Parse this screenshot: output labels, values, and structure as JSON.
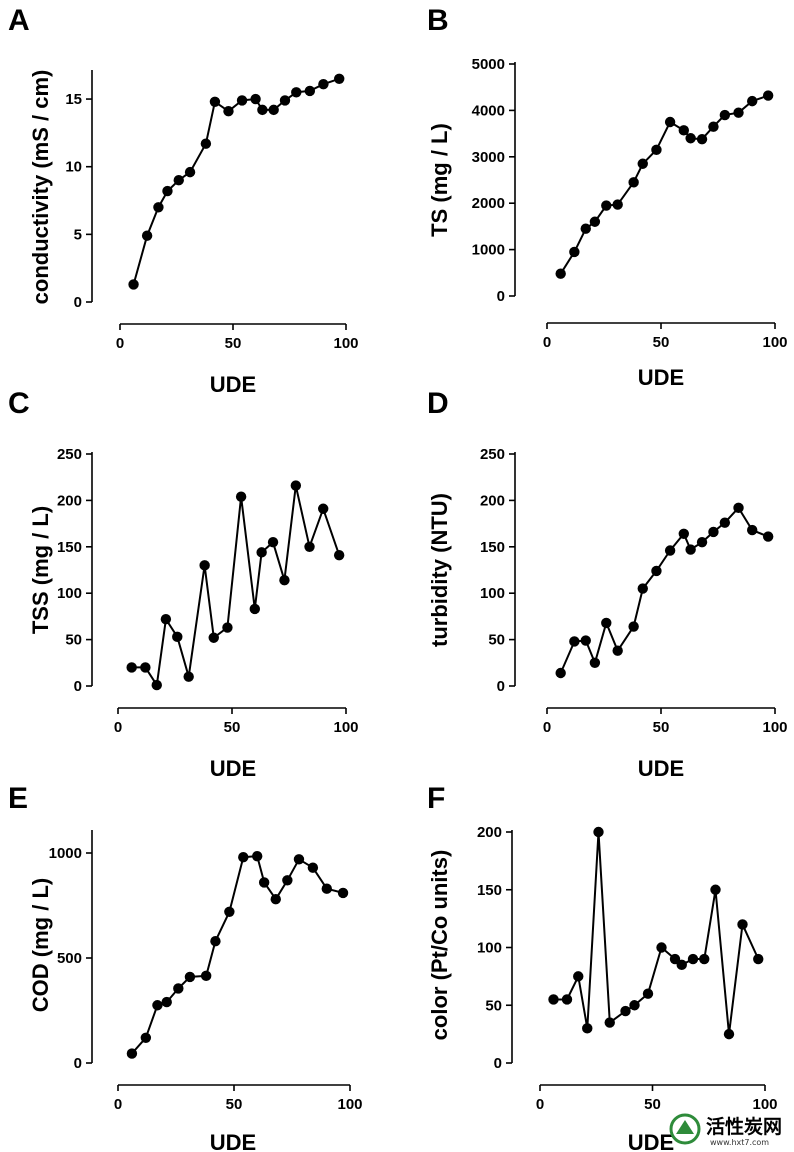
{
  "chart_data": [
    {
      "panel": "A",
      "type": "line",
      "xlabel": "UDE",
      "ylabel": "conductivity (mS / cm)",
      "xlim": [
        0,
        100
      ],
      "ylim": [
        0,
        17
      ],
      "xticks": [
        0,
        50,
        100
      ],
      "yticks": [
        0,
        5,
        10,
        15
      ],
      "x": [
        6,
        12,
        17,
        21,
        26,
        31,
        38,
        42,
        48,
        54,
        60,
        63,
        68,
        73,
        78,
        84,
        90,
        97
      ],
      "y": [
        1.3,
        4.9,
        7.0,
        8.2,
        9.0,
        9.6,
        11.7,
        14.8,
        14.1,
        14.9,
        15.0,
        14.2,
        14.2,
        14.9,
        15.5,
        15.6,
        16.1,
        16.5
      ]
    },
    {
      "panel": "B",
      "type": "line",
      "xlabel": "UDE",
      "ylabel": "TS (mg / L)",
      "xlim": [
        0,
        100
      ],
      "ylim": [
        0,
        5000
      ],
      "xticks": [
        0,
        50,
        100
      ],
      "yticks": [
        0,
        1000,
        2000,
        3000,
        4000,
        5000
      ],
      "x": [
        6,
        12,
        17,
        21,
        26,
        31,
        38,
        42,
        48,
        54,
        60,
        63,
        68,
        73,
        78,
        84,
        90,
        97
      ],
      "y": [
        480,
        950,
        1450,
        1600,
        1950,
        1970,
        2450,
        2850,
        3150,
        3750,
        3570,
        3400,
        3380,
        3650,
        3900,
        3950,
        4200,
        4320
      ]
    },
    {
      "panel": "C",
      "type": "line",
      "xlabel": "UDE",
      "ylabel": "TSS (mg / L)",
      "xlim": [
        0,
        100
      ],
      "ylim": [
        0,
        250
      ],
      "xticks": [
        0,
        50,
        100
      ],
      "yticks": [
        0,
        50,
        100,
        150,
        200,
        250
      ],
      "x": [
        6,
        12,
        17,
        21,
        26,
        31,
        38,
        42,
        48,
        54,
        60,
        63,
        68,
        73,
        78,
        84,
        90,
        97
      ],
      "y": [
        20,
        20,
        1,
        72,
        53,
        10,
        130,
        52,
        63,
        204,
        83,
        144,
        155,
        114,
        216,
        150,
        191,
        141
      ]
    },
    {
      "panel": "D",
      "type": "line",
      "xlabel": "UDE",
      "ylabel": "turbidity (NTU)",
      "xlim": [
        0,
        100
      ],
      "ylim": [
        0,
        250
      ],
      "xticks": [
        0,
        50,
        100
      ],
      "yticks": [
        0,
        50,
        100,
        150,
        200,
        250
      ],
      "x": [
        6,
        12,
        17,
        21,
        26,
        31,
        38,
        42,
        48,
        54,
        60,
        63,
        68,
        73,
        78,
        84,
        90,
        97
      ],
      "y": [
        14,
        48,
        49,
        25,
        68,
        38,
        64,
        105,
        124,
        146,
        164,
        147,
        155,
        166,
        176,
        192,
        168,
        161
      ]
    },
    {
      "panel": "E",
      "type": "line",
      "xlabel": "UDE",
      "ylabel": "COD (mg / L)",
      "xlim": [
        0,
        100
      ],
      "ylim": [
        0,
        1100
      ],
      "xticks": [
        0,
        50,
        100
      ],
      "yticks": [
        0,
        500,
        1000
      ],
      "x": [
        6,
        12,
        17,
        21,
        26,
        31,
        38,
        42,
        48,
        54,
        60,
        63,
        68,
        73,
        78,
        84,
        90,
        97
      ],
      "y": [
        45,
        120,
        275,
        290,
        355,
        410,
        415,
        580,
        720,
        980,
        985,
        860,
        780,
        870,
        970,
        930,
        830,
        810
      ]
    },
    {
      "panel": "F",
      "type": "line",
      "xlabel": "UDE",
      "ylabel": "color (Pt/Co units)",
      "xlim": [
        0,
        100
      ],
      "ylim": [
        0,
        200
      ],
      "xticks": [
        0,
        50,
        100
      ],
      "yticks": [
        0,
        50,
        100,
        150,
        200
      ],
      "x": [
        6,
        12,
        17,
        21,
        26,
        31,
        38,
        42,
        48,
        54,
        60,
        63,
        68,
        73,
        78,
        84,
        90,
        97
      ],
      "y": [
        55,
        55,
        75,
        30,
        200,
        35,
        45,
        50,
        60,
        100,
        90,
        85,
        90,
        90,
        150,
        25,
        120,
        90
      ]
    }
  ],
  "watermark": {
    "text": "活性炭网",
    "url": "www.hxt7.com"
  }
}
